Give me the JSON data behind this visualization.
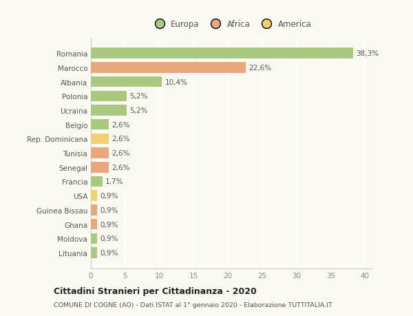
{
  "categories": [
    "Romania",
    "Marocco",
    "Albania",
    "Polonia",
    "Ucraina",
    "Belgio",
    "Rep. Dominicana",
    "Tunisia",
    "Senegal",
    "Francia",
    "USA",
    "Guinea Bissau",
    "Ghana",
    "Moldova",
    "Lituania"
  ],
  "values": [
    38.3,
    22.6,
    10.4,
    5.2,
    5.2,
    2.6,
    2.6,
    2.6,
    2.6,
    1.7,
    0.9,
    0.9,
    0.9,
    0.9,
    0.9
  ],
  "labels": [
    "38,3%",
    "22,6%",
    "10,4%",
    "5,2%",
    "5,2%",
    "2,6%",
    "2,6%",
    "2,6%",
    "2,6%",
    "1,7%",
    "0,9%",
    "0,9%",
    "0,9%",
    "0,9%",
    "0,9%"
  ],
  "continents": [
    "Europa",
    "Africa",
    "Europa",
    "Europa",
    "Europa",
    "Europa",
    "America",
    "Africa",
    "Africa",
    "Europa",
    "America",
    "Africa",
    "Africa",
    "Europa",
    "Europa"
  ],
  "colors": {
    "Europa": "#a8c97f",
    "Africa": "#e8a87c",
    "America": "#f0d070"
  },
  "xlim": [
    0,
    41
  ],
  "xticks": [
    0,
    5,
    10,
    15,
    20,
    25,
    30,
    35,
    40
  ],
  "title": "Cittadini Stranieri per Cittadinanza - 2020",
  "subtitle": "COMUNE DI COGNE (AO) - Dati ISTAT al 1° gennaio 2020 - Elaborazione TUTTITALIA.IT",
  "background_color": "#fafaf2",
  "grid_color": "#ffffff",
  "bar_height": 0.75,
  "label_fontsize": 7.5,
  "ytick_fontsize": 7.5,
  "xtick_fontsize": 7.5
}
